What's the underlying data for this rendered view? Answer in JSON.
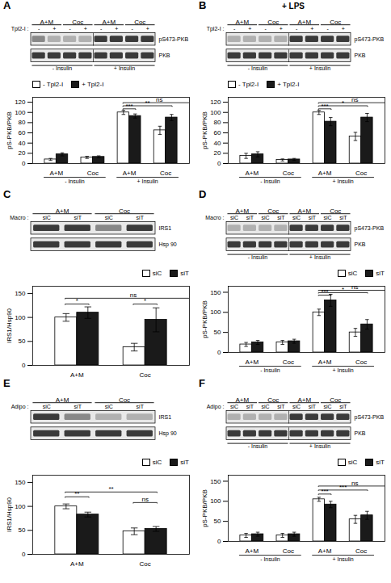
{
  "chart_data": [
    {
      "type": "blot",
      "title": "A",
      "xlabel": "Tpl2-I :",
      "categories": [
        "-",
        "+",
        "-",
        "+",
        "-",
        "+",
        "-",
        "+"
      ],
      "series": [
        {
          "name": "pS473-PKB",
          "colors": [
            "#888888",
            "#b0b0b0",
            "#b0b0b0",
            "#b0b0b0",
            "#3a3a3a",
            "#3a3a3a",
            "#3a3a3a",
            "#3a3a3a"
          ]
        },
        {
          "name": "PKB",
          "colors": [
            "#3a3a3a",
            "#3a3a3a",
            "#3a3a3a",
            "#3a3a3a",
            "#3a3a3a",
            "#3a3a3a",
            "#3a3a3a",
            "#3a3a3a"
          ]
        }
      ],
      "groups": [
        {
          "text": "A+M",
          "lanes": [
            0,
            1
          ]
        },
        {
          "text": "Coc",
          "lanes": [
            2,
            3
          ]
        },
        {
          "text": "A+M",
          "lanes": [
            4,
            5
          ]
        },
        {
          "text": "Coc",
          "lanes": [
            6,
            7
          ]
        }
      ],
      "annotations": [
        {
          "text": "- Insulin",
          "lanes": [
            0,
            3
          ]
        },
        {
          "text": "+ Insulin",
          "lanes": [
            4,
            7
          ]
        }
      ]
    },
    {
      "type": "bar",
      "ylabel": "pS-PKB/PKB",
      "categories": [
        "A+M",
        "Coc",
        "A+M",
        "Coc"
      ],
      "series": [
        {
          "name": "- Tpl2-I",
          "color": "#ffffff",
          "values": [
            8,
            12,
            100,
            65
          ],
          "errors": [
            2,
            2,
            4,
            8
          ]
        },
        {
          "name": "+ Tpl2-I",
          "color": "#1a1a1a",
          "values": [
            18,
            13,
            93,
            90
          ],
          "errors": [
            3,
            2,
            4,
            6
          ]
        }
      ],
      "ylim": [
        0,
        129.6
      ],
      "yticks": [
        0,
        20,
        40,
        60,
        80,
        100,
        120
      ],
      "legend": "upper left",
      "annotations": [
        {
          "text": "***",
          "x1": 2.825,
          "x2": 3.175,
          "y": 107
        },
        {
          "text": "**",
          "x1": 2.825,
          "x2": 4.175,
          "y": 113
        },
        {
          "text": "ns",
          "x1": 2.825,
          "x2": 4.825,
          "y": 119
        },
        {
          "text": "- Insulin",
          "x1": 0.65,
          "x2": 2.35
        },
        {
          "text": "+ Insulin",
          "x1": 2.65,
          "x2": 4.35
        }
      ]
    },
    {
      "type": "blot",
      "title": "B",
      "subtitle": "+ LPS",
      "xlabel": "Tpl2-I :",
      "categories": [
        "-",
        "+",
        "-",
        "+",
        "-",
        "+",
        "-",
        "+"
      ],
      "series": [
        {
          "name": "pS473-PKB",
          "colors": [
            "#b0b0b0",
            "#b0b0b0",
            "#b0b0b0",
            "#b0b0b0",
            "#3a3a3a",
            "#3a3a3a",
            "#3a3a3a",
            "#3a3a3a"
          ]
        },
        {
          "name": "PKB",
          "colors": [
            "#3a3a3a",
            "#3a3a3a",
            "#3a3a3a",
            "#3a3a3a",
            "#3a3a3a",
            "#3a3a3a",
            "#3a3a3a",
            "#3a3a3a"
          ]
        }
      ],
      "groups": [
        {
          "text": "A+M",
          "lanes": [
            0,
            1
          ]
        },
        {
          "text": "Coc",
          "lanes": [
            2,
            3
          ]
        },
        {
          "text": "A+M",
          "lanes": [
            4,
            5
          ]
        },
        {
          "text": "Coc",
          "lanes": [
            6,
            7
          ]
        }
      ],
      "annotations": [
        {
          "text": "- Insulin",
          "lanes": [
            0,
            3
          ]
        },
        {
          "text": "+ Insulin",
          "lanes": [
            4,
            7
          ]
        }
      ]
    },
    {
      "type": "bar",
      "ylabel": "pS-PKB/PKB",
      "categories": [
        "A+M",
        "Coc",
        "A+M",
        "Coc"
      ],
      "series": [
        {
          "name": "- Tpl2-I",
          "color": "#ffffff",
          "values": [
            15,
            7,
            100,
            53
          ],
          "errors": [
            5,
            2,
            4,
            8
          ]
        },
        {
          "name": "+ Tpl2-I",
          "color": "#1a1a1a",
          "values": [
            18,
            8,
            82,
            90
          ],
          "errors": [
            5,
            2,
            8,
            8
          ]
        }
      ],
      "ylim": [
        0,
        129.6
      ],
      "yticks": [
        0,
        20,
        40,
        60,
        80,
        100,
        120
      ],
      "legend": "upper left",
      "annotations": [
        {
          "text": "***",
          "x1": 2.825,
          "x2": 3.175,
          "y": 107
        },
        {
          "text": "*",
          "x1": 2.825,
          "x2": 4.175,
          "y": 113
        },
        {
          "text": "ns",
          "x1": 2.825,
          "x2": 4.825,
          "y": 119
        },
        {
          "text": "- Insulin",
          "x1": 0.65,
          "x2": 2.35
        },
        {
          "text": "+ Insulin",
          "x1": 2.65,
          "x2": 4.35
        }
      ]
    },
    {
      "type": "blot",
      "title": "C",
      "xlabel": "Macro :",
      "categories": [
        "siC",
        "siT",
        "siC",
        "siT"
      ],
      "series": [
        {
          "name": "IRS1",
          "colors": [
            "#3a3a3a",
            "#3a3a3a",
            "#888888",
            "#3a3a3a"
          ]
        },
        {
          "name": "Hsp 90",
          "colors": [
            "#3a3a3a",
            "#3a3a3a",
            "#3a3a3a",
            "#3a3a3a"
          ]
        }
      ],
      "groups": [
        {
          "text": "A+M",
          "lanes": [
            0,
            1
          ]
        },
        {
          "text": "Coc",
          "lanes": [
            2,
            3
          ]
        }
      ]
    },
    {
      "type": "bar",
      "ylabel": "IRS1/Hsp90",
      "categories": [
        "A+M",
        "Coc"
      ],
      "series": [
        {
          "name": "siC",
          "color": "#ffffff",
          "values": [
            100,
            38
          ],
          "errors": [
            8,
            8
          ]
        },
        {
          "name": "siT",
          "color": "#1a1a1a",
          "values": [
            110,
            95
          ],
          "errors": [
            12,
            25
          ]
        }
      ],
      "ylim": [
        0,
        165
      ],
      "yticks": [
        0,
        50,
        100,
        150
      ],
      "legend": "upper right",
      "annotations": [
        {
          "text": "ns",
          "x1": 0.825,
          "x2": 2.825,
          "y": 140
        },
        {
          "text": "*",
          "x1": 0.825,
          "x2": 1.175,
          "y": 128
        },
        {
          "text": "*",
          "x1": 1.825,
          "x2": 2.175,
          "y": 128
        }
      ]
    },
    {
      "type": "blot",
      "title": "D",
      "xlabel": "Macro :",
      "categories": [
        "siC",
        "siT",
        "siC",
        "siT",
        "siC",
        "siT",
        "siC",
        "siT"
      ],
      "series": [
        {
          "name": "pS473-PKB",
          "colors": [
            "#b0b0b0",
            "#b0b0b0",
            "#b0b0b0",
            "#b0b0b0",
            "#3a3a3a",
            "#3a3a3a",
            "#3a3a3a",
            "#3a3a3a"
          ]
        },
        {
          "name": "PKB",
          "colors": [
            "#3a3a3a",
            "#3a3a3a",
            "#3a3a3a",
            "#3a3a3a",
            "#3a3a3a",
            "#3a3a3a",
            "#3a3a3a",
            "#3a3a3a"
          ]
        }
      ],
      "groups": [
        {
          "text": "A+M",
          "lanes": [
            0,
            1
          ]
        },
        {
          "text": "Coc",
          "lanes": [
            2,
            3
          ]
        },
        {
          "text": "A+M",
          "lanes": [
            4,
            5
          ]
        },
        {
          "text": "Coc",
          "lanes": [
            6,
            7
          ]
        }
      ],
      "annotations": [
        {
          "text": "- Insulin",
          "lanes": [
            0,
            3
          ]
        },
        {
          "text": "+ Insulin",
          "lanes": [
            4,
            7
          ]
        }
      ]
    },
    {
      "type": "bar",
      "ylabel": "pS-PKB/PKB",
      "categories": [
        "A+M",
        "Coc",
        "A+M",
        "Coc"
      ],
      "series": [
        {
          "name": "siC",
          "color": "#ffffff",
          "values": [
            20,
            25,
            100,
            50
          ],
          "errors": [
            5,
            5,
            8,
            10
          ]
        },
        {
          "name": "siT",
          "color": "#1a1a1a",
          "values": [
            25,
            28,
            130,
            70
          ],
          "errors": [
            5,
            5,
            15,
            12
          ]
        }
      ],
      "ylim": [
        0,
        165
      ],
      "yticks": [
        0,
        50,
        100,
        150
      ],
      "legend": "upper right",
      "annotations": [
        {
          "text": "***",
          "x1": 2.825,
          "x2": 3.175,
          "y": 143
        },
        {
          "text": "*",
          "x1": 2.825,
          "x2": 4.175,
          "y": 149
        },
        {
          "text": "ns",
          "x1": 2.825,
          "x2": 4.825,
          "y": 155
        },
        {
          "text": "- Insulin",
          "x1": 0.65,
          "x2": 2.35
        },
        {
          "text": "+ Insulin",
          "x1": 2.65,
          "x2": 4.35
        }
      ]
    },
    {
      "type": "blot",
      "title": "E",
      "xlabel": "Adipo :",
      "categories": [
        "siC",
        "siT",
        "siC",
        "siT"
      ],
      "series": [
        {
          "name": "IRS1",
          "colors": [
            "#3a3a3a",
            "#888888",
            "#b0b0b0",
            "#b0b0b0"
          ]
        },
        {
          "name": "Hsp 90",
          "colors": [
            "#3a3a3a",
            "#3a3a3a",
            "#3a3a3a",
            "#3a3a3a"
          ]
        }
      ],
      "groups": [
        {
          "text": "A+M",
          "lanes": [
            0,
            1
          ]
        },
        {
          "text": "Coc",
          "lanes": [
            2,
            3
          ]
        }
      ]
    },
    {
      "type": "bar",
      "ylabel": "IRS1/Hsp90",
      "categories": [
        "A+M",
        "Coc"
      ],
      "series": [
        {
          "name": "siC",
          "color": "#ffffff",
          "values": [
            100,
            48
          ],
          "errors": [
            5,
            7
          ]
        },
        {
          "name": "siT",
          "color": "#1a1a1a",
          "values": [
            83,
            53
          ],
          "errors": [
            5,
            5
          ]
        }
      ],
      "ylim": [
        0,
        165
      ],
      "yticks": [
        0,
        50,
        100,
        150
      ],
      "legend": "upper right",
      "annotations": [
        {
          "text": "**",
          "x1": 0.825,
          "x2": 1.175,
          "y": 120
        },
        {
          "text": "**",
          "x1": 0.825,
          "x2": 2.175,
          "y": 130
        },
        {
          "text": "ns",
          "x1": 1.825,
          "x2": 2.175,
          "y": 108
        }
      ]
    },
    {
      "type": "blot",
      "title": "F",
      "xlabel": "Adipo :",
      "categories": [
        "siC",
        "siT",
        "siC",
        "siT",
        "siC",
        "siT",
        "siC",
        "siT"
      ],
      "series": [
        {
          "name": "pS473-PKB",
          "colors": [
            "#b0b0b0",
            "#b0b0b0",
            "#b0b0b0",
            "#b0b0b0",
            "#3a3a3a",
            "#3a3a3a",
            "#3a3a3a",
            "#3a3a3a"
          ]
        },
        {
          "name": "PKB",
          "colors": [
            "#3a3a3a",
            "#3a3a3a",
            "#3a3a3a",
            "#3a3a3a",
            "#3a3a3a",
            "#3a3a3a",
            "#3a3a3a",
            "#3a3a3a"
          ]
        }
      ],
      "groups": [
        {
          "text": "A+M",
          "lanes": [
            0,
            1
          ]
        },
        {
          "text": "Coc",
          "lanes": [
            2,
            3
          ]
        },
        {
          "text": "A+M",
          "lanes": [
            4,
            5
          ]
        },
        {
          "text": "Coc",
          "lanes": [
            6,
            7
          ]
        }
      ],
      "annotations": [
        {
          "text": "- Insulin",
          "lanes": [
            0,
            3
          ]
        },
        {
          "text": "+ Insulin",
          "lanes": [
            4,
            7
          ]
        }
      ]
    },
    {
      "type": "bar",
      "ylabel": "pS-PKB/PKB",
      "categories": [
        "A+M",
        "Coc",
        "A+M",
        "Coc"
      ],
      "series": [
        {
          "name": "siC",
          "color": "#ffffff",
          "values": [
            15,
            15,
            105,
            55
          ],
          "errors": [
            5,
            5,
            5,
            10
          ]
        },
        {
          "name": "siT",
          "color": "#1a1a1a",
          "values": [
            18,
            18,
            92,
            65
          ],
          "errors": [
            5,
            5,
            8,
            10
          ]
        }
      ],
      "ylim": [
        0,
        165
      ],
      "yticks": [
        0,
        50,
        100,
        150
      ],
      "legend": "upper right",
      "annotations": [
        {
          "text": "***",
          "x1": 2.825,
          "x2": 3.175,
          "y": 118
        },
        {
          "text": "***",
          "x1": 2.825,
          "x2": 4.175,
          "y": 128
        },
        {
          "text": "ns",
          "x1": 2.825,
          "x2": 4.825,
          "y": 138
        },
        {
          "text": "- Insulin",
          "x1": 0.65,
          "x2": 2.35
        },
        {
          "text": "+ Insulin",
          "x1": 2.65,
          "x2": 4.35
        }
      ]
    }
  ]
}
